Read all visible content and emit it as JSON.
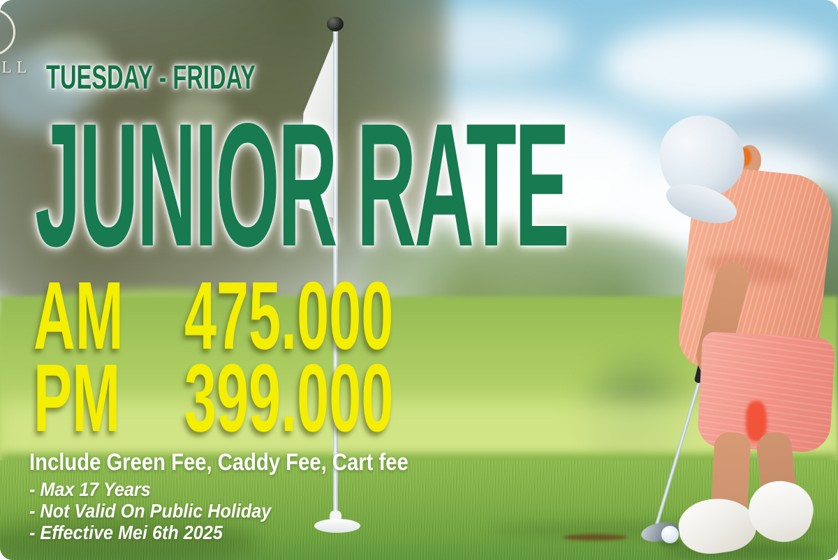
{
  "poster": {
    "logo": {
      "text": "LL"
    },
    "schedule_label": "TUESDAY - FRIDAY",
    "title": "JUNIOR RATE",
    "prices": [
      {
        "period": "AM",
        "amount": "475.000"
      },
      {
        "period": "PM",
        "amount": "399.000"
      }
    ],
    "includes_line": "Include Green Fee, Caddy Fee, Cart fee",
    "notes": [
      "- Max 17 Years",
      "- Not Valid On Public Holiday",
      "- Effective Mei 6th 2025"
    ],
    "colors": {
      "heading_green": "#177A50",
      "price_yellow": "#F4EE00",
      "text_white": "#FFFFFF"
    }
  }
}
